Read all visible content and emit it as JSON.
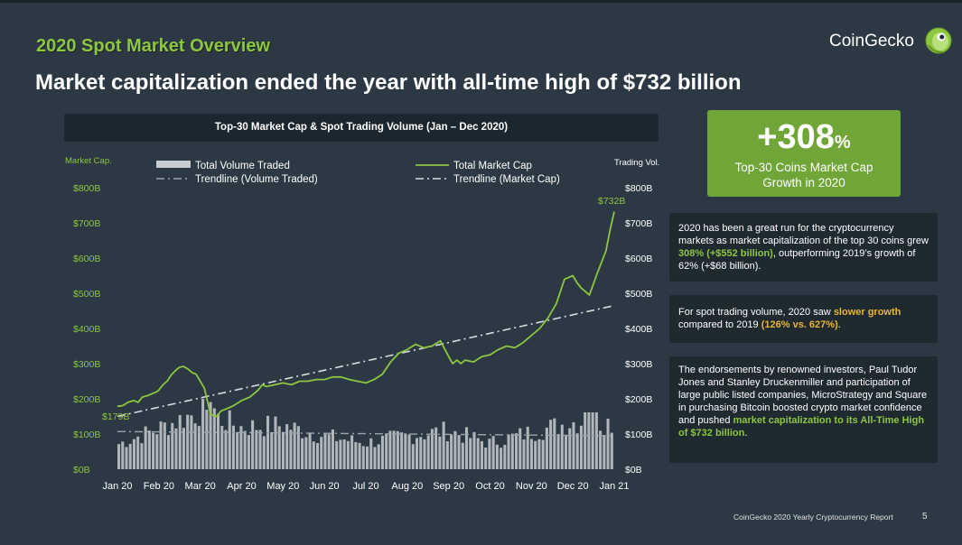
{
  "slide": {
    "kicker": "2020 Spot Market Overview",
    "headline": "Market capitalization ended the year with all-time high of $732 billion",
    "brand": "CoinGecko",
    "footer_source": "CoinGecko 2020 Yearly Cryptocurrency Report",
    "page_number": "5"
  },
  "colors": {
    "background": "#2c3944",
    "accent_green": "#8dc63f",
    "card_green": "#6fa637",
    "highlight_yellow": "#e8b630",
    "volume_bars": "#c9ccd0"
  },
  "stat_card": {
    "value": "+308",
    "unit": "%",
    "label_line1": "Top-30 Coins Market Cap",
    "label_line2": "Growth in 2020"
  },
  "notes": {
    "note1": {
      "part1": "2020 has been a great run for the cryptocurrency markets as market capitalization of the top 30 coins grew ",
      "highlight": "308% (+$552 billion)",
      "part2": ", outperforming 2019’s growth of 62% (+$68 billion)."
    },
    "note2": {
      "part1": "For spot trading volume, 2020 saw ",
      "highlight1": "slower growth",
      "part2": " compared to 2019 ",
      "highlight2": "(126% vs. 627%)",
      "part3": "."
    },
    "note3": {
      "part1": "The endorsements by renowned investors, Paul Tudor Jones and Stanley Druckenmiller and participation of large public listed companies, MicroStrategy and Square in purchasing Bitcoin boosted crypto market confidence and pushed ",
      "highlight": "market capitalization to its All-Time High of $732 billion",
      "part2": "."
    }
  },
  "chart_data": {
    "type": "line",
    "title": "Top-30 Market Cap & Spot Trading Volume (Jan – Dec 2020)",
    "ylabel_left": "Market Cap.",
    "ylabel_right": "Trading Vol.",
    "ylim": [
      0,
      800
    ],
    "yticks_left": [
      "$0B",
      "$100B",
      "$200B",
      "$300B",
      "$400B",
      "$500B",
      "$600B",
      "$700B",
      "$800B"
    ],
    "yticks_right": [
      "$0B",
      "$100B",
      "$200B",
      "$300B",
      "$400B",
      "$500B",
      "$600B",
      "$700B",
      "$800B"
    ],
    "xticks": [
      "Jan 20",
      "Feb 20",
      "Mar 20",
      "Apr 20",
      "May 20",
      "Jun 20",
      "Jul 20",
      "Aug 20",
      "Sep 20",
      "Oct 20",
      "Nov 20",
      "Dec 20",
      "Jan 21"
    ],
    "legend_placement": "top",
    "legend": {
      "volume": "Total Volume Traded",
      "volume_trend": "Trendline (Volume Traded)",
      "mcap": "Total Market Cap",
      "mcap_trend": "Trendline (Market Cap)"
    },
    "annotations": {
      "start_label": "$179B",
      "end_label": "$732B"
    },
    "grid": false,
    "series": [
      {
        "name": "Total Market Cap",
        "axis": "left",
        "x": [
          0.0,
          0.1,
          0.15,
          0.25,
          0.4,
          0.5,
          0.6,
          0.75,
          0.85,
          0.95,
          1.0,
          1.1,
          1.2,
          1.3,
          1.4,
          1.5,
          1.6,
          1.7,
          1.8,
          1.9,
          2.0,
          2.1,
          2.25,
          2.4,
          2.5,
          2.6,
          2.8,
          3.0,
          3.2,
          3.4,
          3.5,
          3.6,
          3.8,
          4.0,
          4.2,
          4.4,
          4.6,
          4.8,
          5.0,
          5.2,
          5.4,
          5.6,
          5.8,
          6.0,
          6.2,
          6.4,
          6.6,
          6.8,
          7.0,
          7.2,
          7.4,
          7.6,
          7.8,
          8.0,
          8.1,
          8.2,
          8.3,
          8.4,
          8.6,
          8.8,
          9.0,
          9.2,
          9.4,
          9.6,
          9.8,
          10.0,
          10.2,
          10.4,
          10.6,
          10.8,
          11.0,
          11.1,
          11.2,
          11.4,
          11.6,
          11.8,
          11.9,
          12.0
        ],
        "values": [
          179,
          180,
          182,
          190,
          195,
          190,
          205,
          210,
          215,
          220,
          225,
          240,
          250,
          268,
          280,
          290,
          292,
          285,
          275,
          270,
          250,
          230,
          155,
          150,
          165,
          170,
          180,
          195,
          205,
          225,
          240,
          235,
          240,
          245,
          240,
          250,
          250,
          255,
          255,
          262,
          262,
          255,
          250,
          245,
          255,
          270,
          305,
          330,
          340,
          355,
          345,
          350,
          365,
          320,
          300,
          310,
          300,
          310,
          305,
          320,
          325,
          340,
          350,
          345,
          360,
          380,
          400,
          430,
          470,
          540,
          550,
          530,
          515,
          495,
          560,
          620,
          680,
          732
        ]
      },
      {
        "name": "Total Volume Traded",
        "axis": "right",
        "type": "bar",
        "monthly_avg": [
          70,
          115,
          165,
          120,
          125,
          95,
          75,
          95,
          110,
          75,
          105,
          135
        ],
        "peak": 190
      },
      {
        "name": "Trendline (Market Cap)",
        "axis": "left",
        "x": [
          0,
          12
        ],
        "values": [
          150,
          465
        ]
      },
      {
        "name": "Trendline (Volume Traded)",
        "axis": "right",
        "x": [
          0,
          12
        ],
        "values": [
          107,
          95
        ]
      }
    ]
  }
}
